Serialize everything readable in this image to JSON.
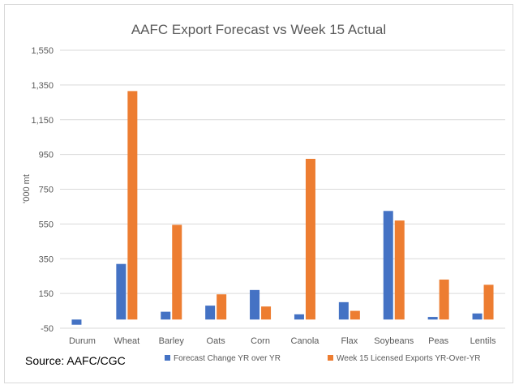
{
  "chart_data": {
    "type": "bar",
    "title": "AAFC Export Forecast vs Week 15 Actual",
    "xlabel": "",
    "ylabel": "'000 mt",
    "ylim": [
      -50,
      1550
    ],
    "yticks": [
      -50,
      150,
      350,
      550,
      750,
      950,
      1150,
      1350,
      1550
    ],
    "ytick_labels": [
      "-50",
      "150",
      "350",
      "550",
      "750",
      "950",
      "1,150",
      "1,350",
      "1,550"
    ],
    "categories": [
      "Durum",
      "Wheat",
      "Barley",
      "Oats",
      "Corn",
      "Canola",
      "Flax",
      "Soybeans",
      "Peas",
      "Lentils"
    ],
    "series": [
      {
        "name": "Forecast Change YR over YR",
        "color": "#4472c4",
        "values": [
          -30,
          320,
          45,
          80,
          170,
          30,
          100,
          625,
          15,
          35
        ]
      },
      {
        "name": "Week 15 Licensed Exports YR-Over-YR",
        "color": "#ed7d31",
        "values": [
          0,
          1315,
          545,
          145,
          75,
          925,
          50,
          570,
          230,
          200
        ]
      }
    ],
    "grid": true,
    "legend": "bottom"
  },
  "source": "Source: AAFC/CGC"
}
